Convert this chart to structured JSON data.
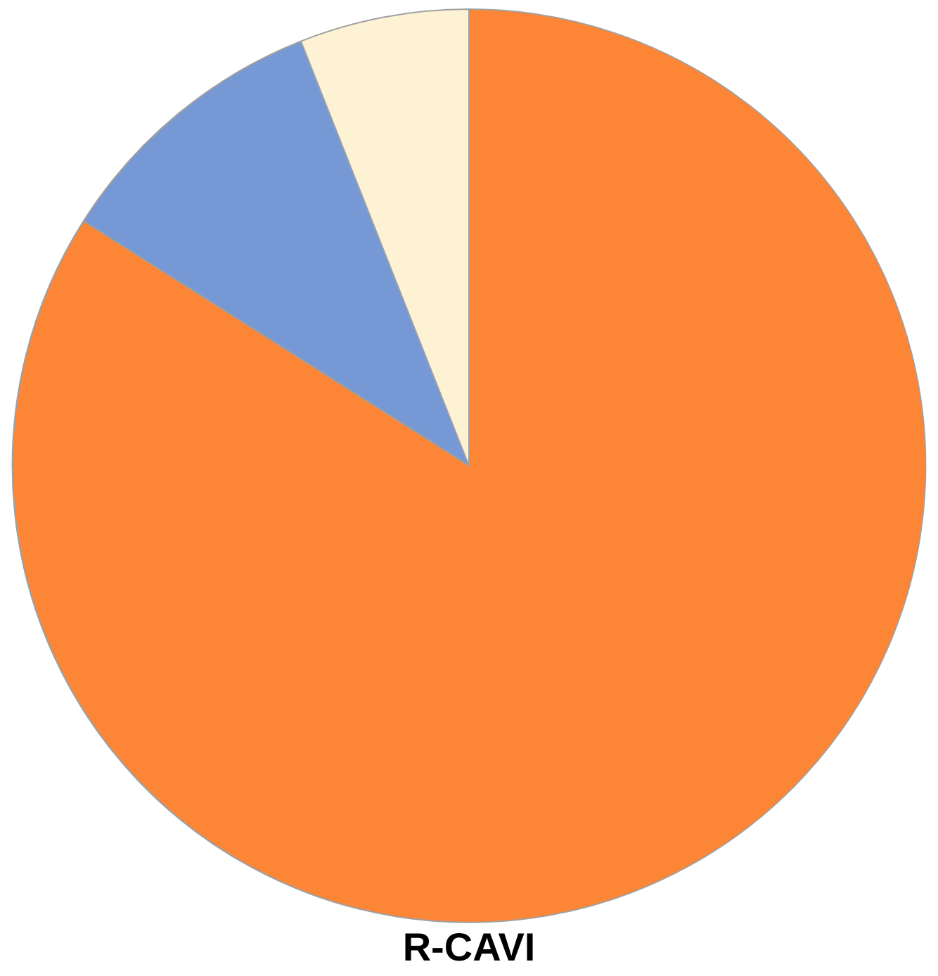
{
  "chart_data": {
    "type": "pie",
    "title": "R-CAVI",
    "categories": [
      null,
      null,
      null
    ],
    "values": [
      84,
      10,
      6
    ],
    "colors": [
      "#fd8636",
      "#7699d5",
      "#fdf2d3"
    ],
    "legend": false
  }
}
